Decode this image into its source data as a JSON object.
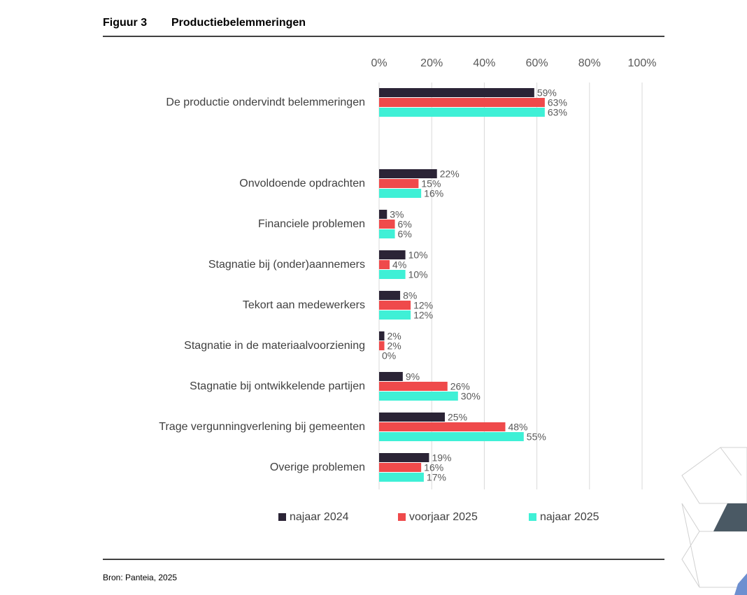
{
  "figure_label": "Figuur 3",
  "source": "Bron: Panteia, 2025",
  "chart_data": {
    "type": "hbar",
    "title": "Productiebelemmeringen",
    "categories": [
      "De productie ondervindt belemmeringen",
      null,
      "Onvoldoende opdrachten",
      "Financiele problemen",
      "Stagnatie bij (onder)aannemers",
      "Tekort aan medewerkers",
      "Stagnatie in de materiaalvoorziening",
      "Stagnatie bij ontwikkelende partijen",
      "Trage vergunningverlening bij gemeenten",
      "Overige problemen"
    ],
    "series": [
      {
        "name": "najaar 2024",
        "color": "#2b2436",
        "values": [
          59,
          null,
          22,
          3,
          10,
          8,
          2,
          9,
          25,
          19
        ],
        "value_labels": [
          "59%",
          null,
          "22%",
          "3%",
          "10%",
          "8%",
          "2%",
          "9%",
          "25%",
          "19%"
        ]
      },
      {
        "name": "voorjaar 2025",
        "color": "#ef4a4b",
        "values": [
          63,
          null,
          15,
          6,
          4,
          12,
          2,
          26,
          48,
          16
        ],
        "value_labels": [
          "63%",
          null,
          "15%",
          "6%",
          "4%",
          "12%",
          "2%",
          "26%",
          "48%",
          "16%"
        ]
      },
      {
        "name": "najaar 2025",
        "color": "#3ff0d6",
        "values": [
          63,
          null,
          16,
          6,
          10,
          12,
          0,
          30,
          55,
          17
        ],
        "value_labels": [
          "63%",
          null,
          "16%",
          "6%",
          "10%",
          "12%",
          "0%",
          "30%",
          "55%",
          "17%"
        ]
      }
    ],
    "xlim": [
      0,
      100
    ],
    "xticks": [
      {
        "value": 0,
        "label": "0%"
      },
      {
        "value": 20,
        "label": "20%"
      },
      {
        "value": 40,
        "label": "40%"
      },
      {
        "value": 60,
        "label": "60%"
      },
      {
        "value": 80,
        "label": "80%"
      },
      {
        "value": 100,
        "label": "100%"
      }
    ],
    "grid": true,
    "legend": "bottom"
  }
}
